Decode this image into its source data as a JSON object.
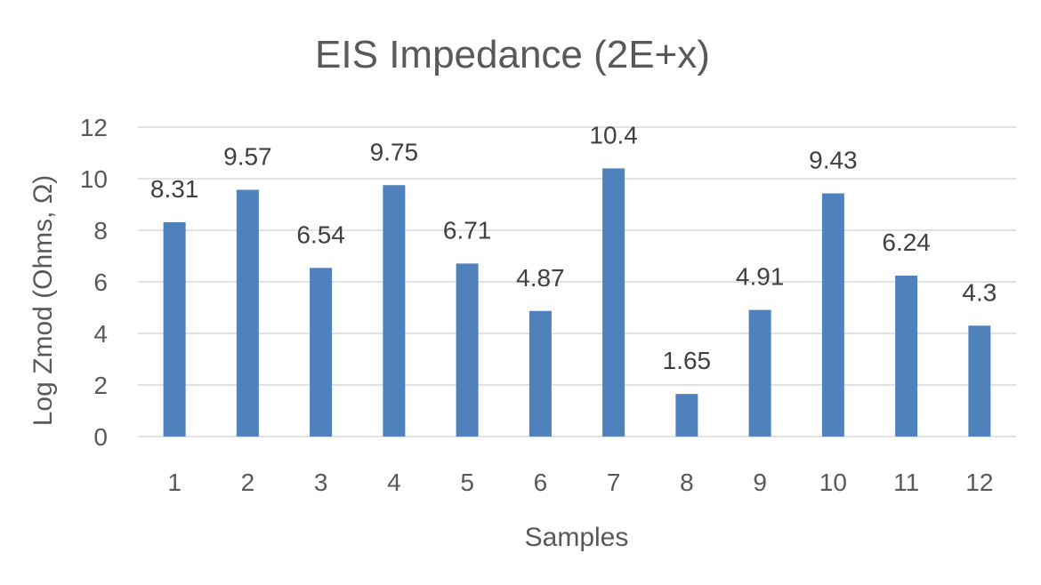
{
  "chart_data": {
    "type": "bar",
    "title": "EIS Impedance (2E+x)",
    "xlabel": "Samples",
    "ylabel": "Log Zmod (Ohms, Ω)",
    "categories": [
      "1",
      "2",
      "3",
      "4",
      "5",
      "6",
      "7",
      "8",
      "9",
      "10",
      "11",
      "12"
    ],
    "series": [
      {
        "values": [
          8.31,
          9.57,
          6.54,
          9.75,
          6.71,
          4.87,
          10.4,
          1.65,
          4.91,
          9.43,
          6.24,
          4.3
        ],
        "color": "#4f81bd"
      }
    ],
    "data_labels": [
      "8.31",
      "9.57",
      "6.54",
      "9.75",
      "6.71",
      "4.87",
      "10.4",
      "1.65",
      "4.91",
      "9.43",
      "6.24",
      "4.3"
    ],
    "ylim": [
      0,
      12
    ],
    "yticks": [
      "0",
      "2",
      "4",
      "6",
      "8",
      "10",
      "12"
    ],
    "grid": true,
    "legend": "none"
  }
}
